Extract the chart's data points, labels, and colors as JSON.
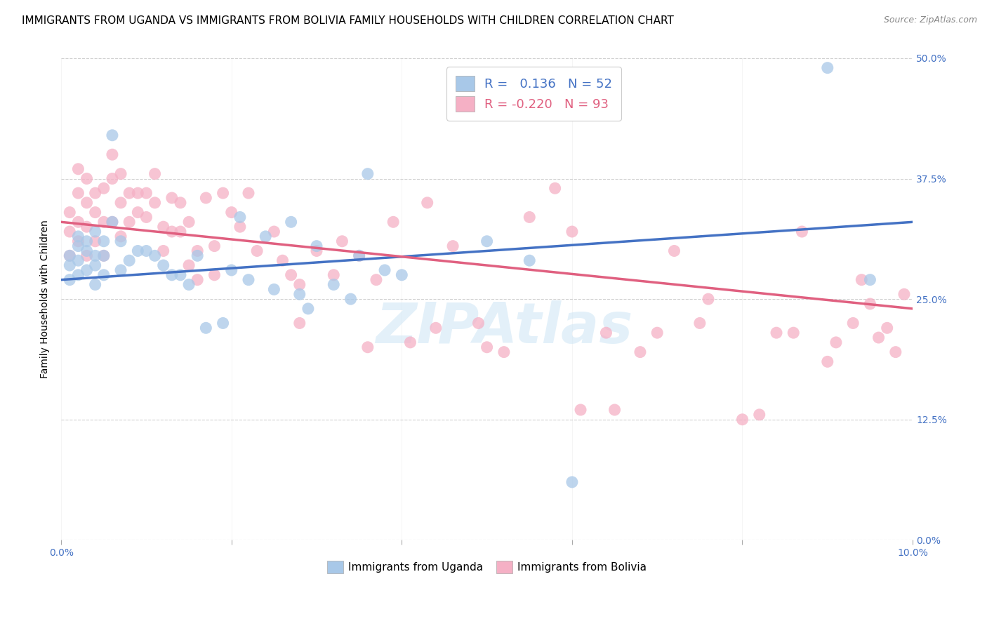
{
  "title": "IMMIGRANTS FROM UGANDA VS IMMIGRANTS FROM BOLIVIA FAMILY HOUSEHOLDS WITH CHILDREN CORRELATION CHART",
  "source": "Source: ZipAtlas.com",
  "ylabel": "Family Households with Children",
  "x_range": [
    0.0,
    0.1
  ],
  "y_range": [
    0.0,
    0.5
  ],
  "legend_entry1_label_r": "R =   0.136",
  "legend_entry1_label_n": "N = 52",
  "legend_entry2_label_r": "R = -0.220",
  "legend_entry2_label_n": "N = 93",
  "legend_bottom1": "Immigrants from Uganda",
  "legend_bottom2": "Immigrants from Bolivia",
  "uganda_color": "#a8c8e8",
  "bolivia_color": "#f5b0c5",
  "uganda_line_color": "#4472c4",
  "bolivia_line_color": "#e06080",
  "uganda_x": [
    0.001,
    0.001,
    0.001,
    0.002,
    0.002,
    0.002,
    0.002,
    0.003,
    0.003,
    0.003,
    0.004,
    0.004,
    0.004,
    0.004,
    0.005,
    0.005,
    0.005,
    0.006,
    0.006,
    0.007,
    0.007,
    0.008,
    0.009,
    0.01,
    0.011,
    0.012,
    0.013,
    0.014,
    0.015,
    0.016,
    0.017,
    0.019,
    0.02,
    0.021,
    0.022,
    0.024,
    0.025,
    0.027,
    0.029,
    0.03,
    0.032,
    0.034,
    0.036,
    0.038,
    0.04,
    0.05,
    0.055,
    0.06,
    0.035,
    0.028,
    0.09,
    0.095
  ],
  "uganda_y": [
    0.285,
    0.295,
    0.27,
    0.305,
    0.29,
    0.315,
    0.275,
    0.3,
    0.31,
    0.28,
    0.295,
    0.32,
    0.265,
    0.285,
    0.31,
    0.275,
    0.295,
    0.42,
    0.33,
    0.31,
    0.28,
    0.29,
    0.3,
    0.3,
    0.295,
    0.285,
    0.275,
    0.275,
    0.265,
    0.295,
    0.22,
    0.225,
    0.28,
    0.335,
    0.27,
    0.315,
    0.26,
    0.33,
    0.24,
    0.305,
    0.265,
    0.25,
    0.38,
    0.28,
    0.275,
    0.31,
    0.29,
    0.06,
    0.295,
    0.255,
    0.49,
    0.27
  ],
  "bolivia_x": [
    0.001,
    0.001,
    0.001,
    0.002,
    0.002,
    0.002,
    0.002,
    0.003,
    0.003,
    0.003,
    0.003,
    0.004,
    0.004,
    0.004,
    0.005,
    0.005,
    0.005,
    0.006,
    0.006,
    0.006,
    0.007,
    0.007,
    0.007,
    0.008,
    0.008,
    0.009,
    0.009,
    0.01,
    0.01,
    0.011,
    0.011,
    0.012,
    0.012,
    0.013,
    0.013,
    0.014,
    0.014,
    0.015,
    0.015,
    0.016,
    0.016,
    0.017,
    0.018,
    0.018,
    0.019,
    0.02,
    0.021,
    0.022,
    0.023,
    0.025,
    0.026,
    0.027,
    0.028,
    0.03,
    0.032,
    0.033,
    0.035,
    0.037,
    0.039,
    0.041,
    0.043,
    0.046,
    0.049,
    0.052,
    0.055,
    0.058,
    0.061,
    0.064,
    0.068,
    0.072,
    0.076,
    0.08,
    0.084,
    0.087,
    0.09,
    0.093,
    0.095,
    0.097,
    0.098,
    0.099,
    0.05,
    0.06,
    0.065,
    0.07,
    0.075,
    0.082,
    0.086,
    0.091,
    0.094,
    0.096,
    0.028,
    0.036,
    0.044
  ],
  "bolivia_y": [
    0.32,
    0.34,
    0.295,
    0.36,
    0.385,
    0.33,
    0.31,
    0.35,
    0.375,
    0.325,
    0.295,
    0.36,
    0.34,
    0.31,
    0.365,
    0.33,
    0.295,
    0.4,
    0.375,
    0.33,
    0.38,
    0.35,
    0.315,
    0.36,
    0.33,
    0.36,
    0.34,
    0.36,
    0.335,
    0.38,
    0.35,
    0.325,
    0.3,
    0.355,
    0.32,
    0.35,
    0.32,
    0.285,
    0.33,
    0.3,
    0.27,
    0.355,
    0.305,
    0.275,
    0.36,
    0.34,
    0.325,
    0.36,
    0.3,
    0.32,
    0.29,
    0.275,
    0.225,
    0.3,
    0.275,
    0.31,
    0.295,
    0.27,
    0.33,
    0.205,
    0.35,
    0.305,
    0.225,
    0.195,
    0.335,
    0.365,
    0.135,
    0.215,
    0.195,
    0.3,
    0.25,
    0.125,
    0.215,
    0.32,
    0.185,
    0.225,
    0.245,
    0.22,
    0.195,
    0.255,
    0.2,
    0.32,
    0.135,
    0.215,
    0.225,
    0.13,
    0.215,
    0.205,
    0.27,
    0.21,
    0.265,
    0.2,
    0.22
  ],
  "background_color": "#ffffff",
  "grid_color": "#d0d0d0",
  "watermark": "ZIPAtlas",
  "title_fontsize": 11,
  "axis_label_fontsize": 10,
  "tick_fontsize": 10,
  "y_ticks": [
    0.0,
    0.125,
    0.25,
    0.375,
    0.5
  ],
  "x_ticks": [
    0.0,
    0.02,
    0.04,
    0.06,
    0.08,
    0.1
  ]
}
